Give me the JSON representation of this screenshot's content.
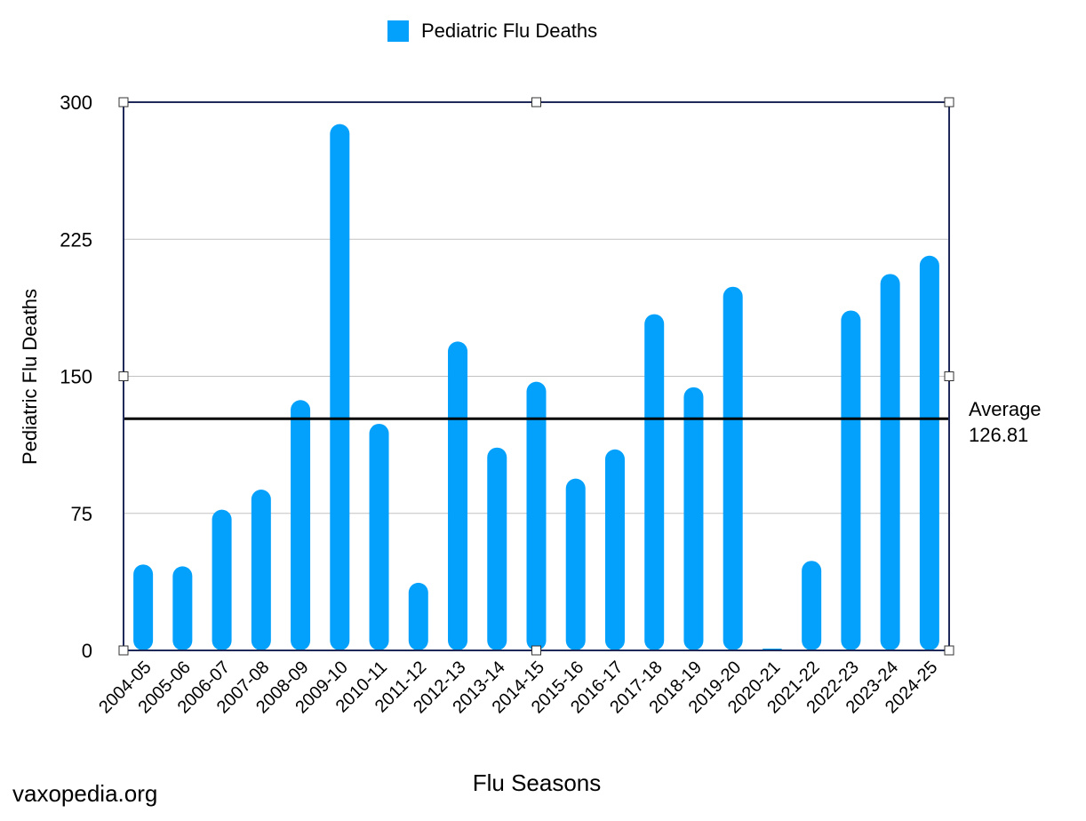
{
  "chart_data": {
    "type": "bar",
    "title": "",
    "xlabel": "Flu Seasons",
    "ylabel": "Pediatric Flu Deaths",
    "ylim": [
      0,
      300
    ],
    "yticks": [
      0,
      75,
      150,
      225,
      300
    ],
    "grid": true,
    "legend_position": "top-center",
    "categories": [
      "2004-05",
      "2005-06",
      "2006-07",
      "2007-08",
      "2008-09",
      "2009-10",
      "2010-11",
      "2011-12",
      "2012-13",
      "2013-14",
      "2014-15",
      "2015-16",
      "2016-17",
      "2017-18",
      "2018-19",
      "2019-20",
      "2020-21",
      "2021-22",
      "2022-23",
      "2023-24",
      "2024-25"
    ],
    "series": [
      {
        "name": "Pediatric Flu Deaths",
        "color": "#03a1fc",
        "values": [
          47,
          46,
          77,
          88,
          137,
          288,
          124,
          37,
          169,
          111,
          147,
          94,
          110,
          184,
          144,
          199,
          1,
          49,
          186,
          206,
          216
        ]
      }
    ],
    "reference_line": {
      "label": "Average",
      "value": 126.81,
      "color": "#000000"
    }
  },
  "credit": "vaxopedia.org"
}
